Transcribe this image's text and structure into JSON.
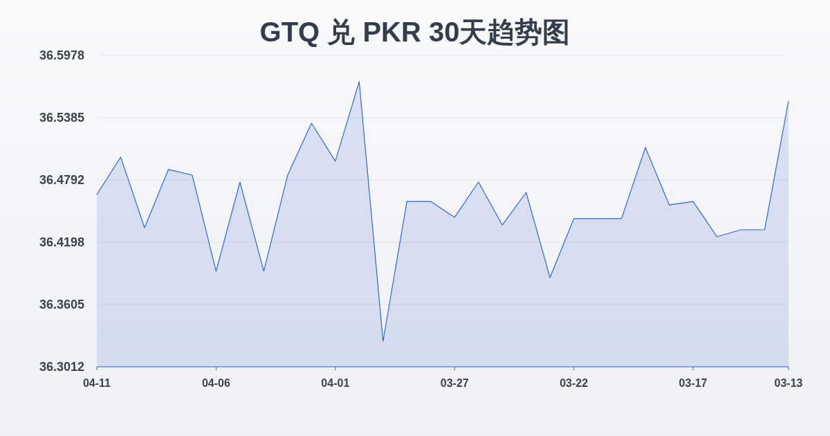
{
  "chart_data": {
    "type": "area",
    "title": "GTQ 兑 PKR 30天趋势图",
    "categories": [
      "04-11",
      null,
      null,
      null,
      null,
      "04-06",
      null,
      null,
      null,
      null,
      "04-01",
      null,
      null,
      null,
      null,
      "03-27",
      null,
      null,
      null,
      null,
      "03-22",
      null,
      null,
      null,
      null,
      "03-17",
      null,
      null,
      null,
      "03-13"
    ],
    "series": [
      {
        "color": "#3366cc",
        "values": [
          36.4653,
          36.5009,
          36.4337,
          36.4891,
          36.4838,
          36.3922,
          36.4772,
          36.3922,
          36.4838,
          36.5332,
          36.497,
          36.5728,
          36.3256,
          36.4587,
          36.4587,
          36.4436,
          36.4772,
          36.4363,
          36.4673,
          36.3862,
          36.4423,
          36.4423,
          36.4423,
          36.5101,
          36.4554,
          36.4587,
          36.4251,
          36.4317,
          36.4317,
          36.5543
        ]
      }
    ],
    "ylim": [
      36.3012,
      36.5978
    ],
    "yticks": [
      36.3012,
      36.3605,
      36.4198,
      36.4792,
      36.5385,
      36.5978
    ],
    "grid": "y"
  }
}
